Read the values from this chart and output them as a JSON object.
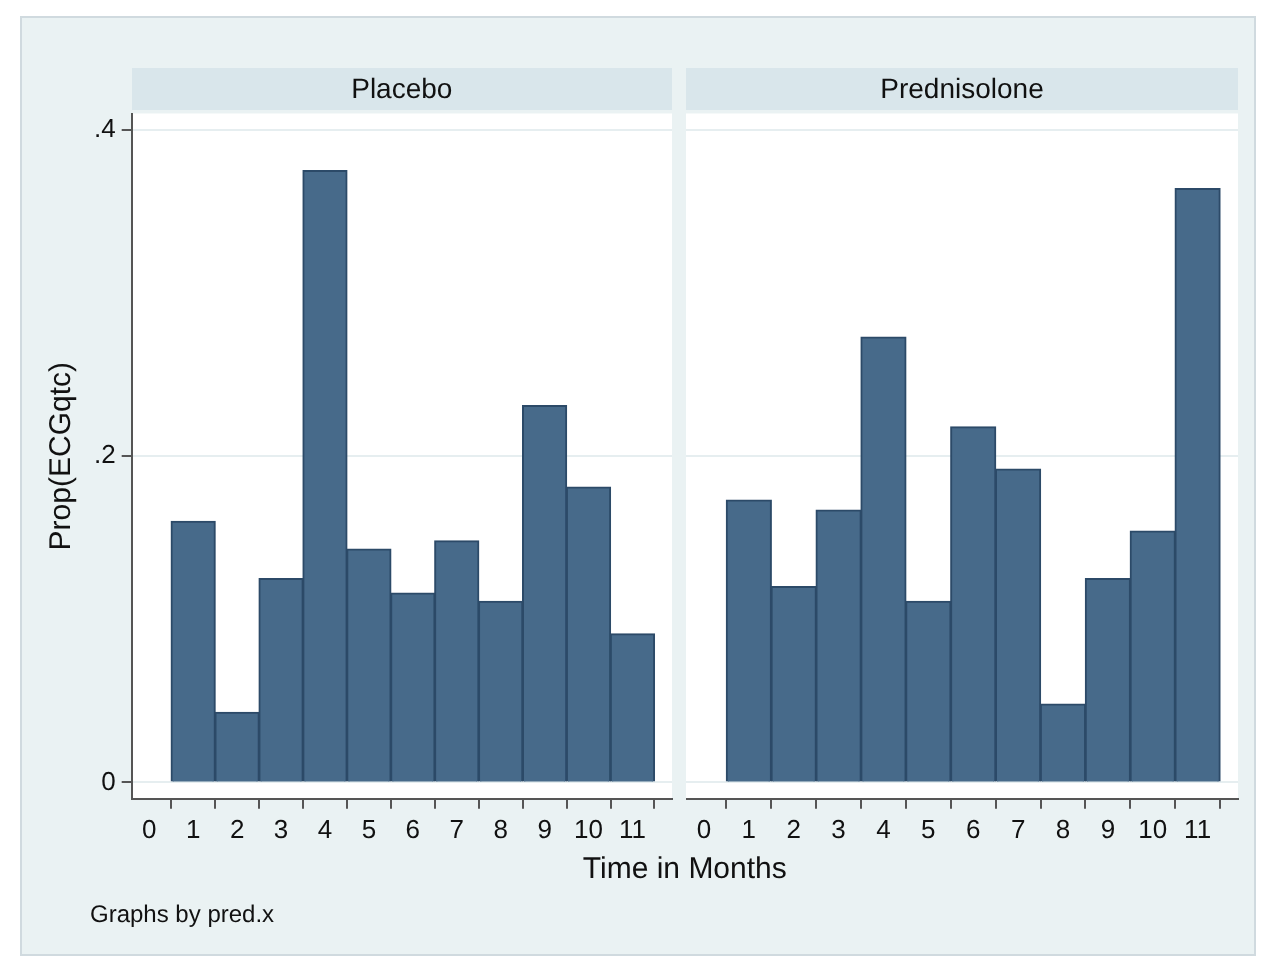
{
  "chart_data": [
    {
      "type": "histogram",
      "title": "Placebo",
      "ylabel": "Prop(ECGqtc)",
      "xlabel": "Time in Months",
      "annotations": [
        "Graphs by pred.x"
      ],
      "color": "#476a8a",
      "bins": [
        0.5,
        1.5,
        2.5,
        3.5,
        4.5,
        5.5,
        6.5,
        7.5,
        8.5,
        9.5,
        10.5,
        11.5
      ],
      "values": [
        0.16,
        0.043,
        0.125,
        0.375,
        0.143,
        0.116,
        0.148,
        0.111,
        0.231,
        0.181,
        0.091
      ],
      "xlim": [
        -0.4,
        11.9
      ],
      "xticks": [
        0,
        1,
        2,
        3,
        4,
        5,
        6,
        7,
        8,
        9,
        10,
        11
      ],
      "ylim": [
        -0.01,
        0.41
      ],
      "yticks": [
        {
          "value": 0,
          "label": "0"
        },
        {
          "value": 0.2,
          "label": ".2"
        },
        {
          "value": 0.4,
          "label": ".4"
        }
      ],
      "grid": "y"
    },
    {
      "type": "histogram",
      "title": "Prednisolone",
      "color": "#476a8a",
      "bins": [
        0.5,
        1.5,
        2.5,
        3.5,
        4.5,
        5.5,
        6.5,
        7.5,
        8.5,
        9.5,
        10.5,
        11.5
      ],
      "values": [
        0.173,
        0.12,
        0.167,
        0.273,
        0.111,
        0.218,
        0.192,
        0.048,
        0.125,
        0.154,
        0.364
      ],
      "xlim": [
        -0.4,
        11.9
      ],
      "xticks": [
        0,
        1,
        2,
        3,
        4,
        5,
        6,
        7,
        8,
        9,
        10,
        11
      ],
      "ylim": [
        -0.01,
        0.41
      ],
      "yticks": [
        0,
        0.2,
        0.4
      ],
      "grid": "y",
      "tick_labels": "x"
    }
  ]
}
